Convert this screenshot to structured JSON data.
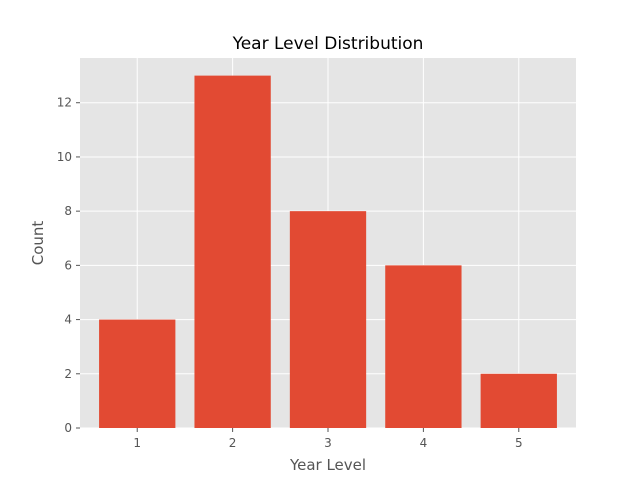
{
  "chart_data": {
    "type": "bar",
    "title": "Year Level Distribution",
    "xlabel": "Year Level",
    "ylabel": "Count",
    "categories": [
      "1",
      "2",
      "3",
      "4",
      "5"
    ],
    "values": [
      4,
      13,
      8,
      6,
      2
    ],
    "ylim": [
      0,
      13.65
    ],
    "yticks": [
      0,
      2,
      4,
      6,
      8,
      10,
      12
    ],
    "grid": true,
    "colors": {
      "bar": "#E24A33",
      "plot_background": "#E5E5E5",
      "grid": "#FFFFFF"
    }
  }
}
